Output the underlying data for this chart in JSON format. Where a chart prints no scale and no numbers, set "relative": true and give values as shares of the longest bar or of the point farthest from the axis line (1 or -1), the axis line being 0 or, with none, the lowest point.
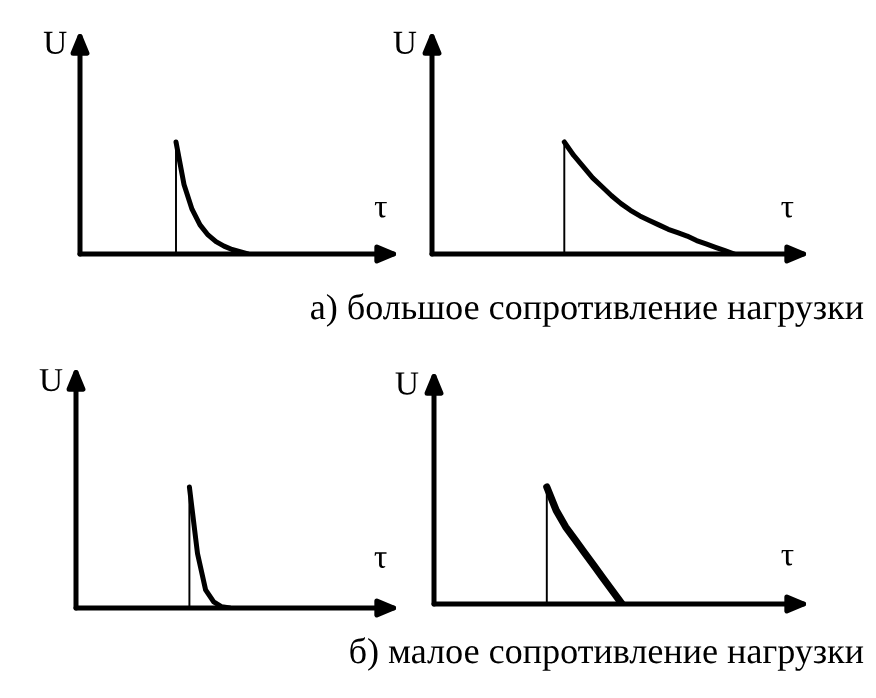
{
  "chart_data": [
    {
      "type": "line",
      "relative": true,
      "xlabel": "τ",
      "ylabel": "U",
      "categories": [
        null,
        null,
        null,
        null,
        null,
        null,
        null,
        null,
        null,
        null,
        null,
        null,
        null,
        null,
        null,
        null,
        null,
        null,
        null,
        null,
        null,
        null,
        null,
        null,
        null,
        null,
        null,
        null,
        null,
        null,
        null,
        null,
        null,
        null,
        null,
        null,
        null,
        null,
        null,
        null
      ],
      "series": [
        {
          "color": "#000000",
          "values": [
            null,
            null,
            null,
            null,
            null,
            null,
            null,
            null,
            null,
            null,
            null,
            null,
            1,
            0.62,
            0.4,
            0.26,
            0.17,
            0.11,
            0.07,
            0.04,
            0.02,
            0,
            null,
            null,
            null,
            null,
            null,
            null,
            null,
            null,
            null,
            null,
            null,
            null,
            null,
            null,
            null,
            null,
            null,
            null
          ]
        }
      ]
    },
    {
      "type": "line",
      "relative": true,
      "xlabel": "τ",
      "ylabel": "U",
      "annotations": [
        "а) большое сопротивление нагрузки"
      ],
      "categories": [
        null,
        null,
        null,
        null,
        null,
        null,
        null,
        null,
        null,
        null,
        null,
        null,
        null,
        null,
        null,
        null,
        null,
        null,
        null,
        null,
        null,
        null,
        null,
        null,
        null,
        null,
        null,
        null,
        null,
        null,
        null,
        null,
        null,
        null,
        null,
        null,
        null,
        null,
        null,
        null
      ],
      "series": [
        {
          "color": "#000000",
          "values": [
            null,
            null,
            null,
            null,
            null,
            null,
            null,
            null,
            null,
            null,
            null,
            null,
            null,
            null,
            1,
            0.88,
            0.78,
            0.68,
            0.6,
            0.52,
            0.45,
            0.39,
            0.34,
            0.3,
            0.26,
            0.22,
            0.19,
            0.16,
            0.12,
            0.09,
            0.06,
            0.03,
            0,
            null,
            null,
            null,
            null,
            null,
            null,
            null
          ]
        }
      ]
    },
    {
      "type": "line",
      "relative": true,
      "xlabel": "τ",
      "ylabel": "U",
      "categories": [
        null,
        null,
        null,
        null,
        null,
        null,
        null,
        null,
        null,
        null,
        null,
        null,
        null,
        null,
        null,
        null,
        null,
        null,
        null,
        null,
        null,
        null,
        null,
        null,
        null,
        null,
        null,
        null,
        null,
        null,
        null,
        null,
        null,
        null,
        null,
        null,
        null,
        null,
        null,
        null
      ],
      "series": [
        {
          "color": "#000000",
          "values": [
            null,
            null,
            null,
            null,
            null,
            null,
            null,
            null,
            null,
            null,
            null,
            null,
            null,
            null,
            1,
            0.45,
            0.15,
            0.05,
            0.01,
            0,
            null,
            null,
            null,
            null,
            null,
            null,
            null,
            null,
            null,
            null,
            null,
            null,
            null,
            null,
            null,
            null,
            null,
            null,
            null,
            null
          ]
        }
      ]
    },
    {
      "type": "line",
      "relative": true,
      "xlabel": "τ",
      "ylabel": "U",
      "annotations": [
        "б) малое сопротивление нагрузки"
      ],
      "categories": [
        null,
        null,
        null,
        null,
        null,
        null,
        null,
        null,
        null,
        null,
        null,
        null,
        null,
        null,
        null,
        null,
        null,
        null,
        null,
        null,
        null,
        null,
        null,
        null,
        null,
        null,
        null,
        null,
        null,
        null,
        null,
        null,
        null,
        null,
        null,
        null,
        null,
        null,
        null,
        null
      ],
      "series": [
        {
          "color": "#000000",
          "values": [
            null,
            null,
            null,
            null,
            null,
            null,
            null,
            null,
            null,
            null,
            null,
            null,
            1,
            0.8,
            0.66,
            0.55,
            0.44,
            0.33,
            0.22,
            0.11,
            0,
            null,
            null,
            null,
            null,
            null,
            null,
            null,
            null,
            null,
            null,
            null,
            null,
            null,
            null,
            null,
            null,
            null,
            null,
            null
          ]
        }
      ]
    }
  ]
}
